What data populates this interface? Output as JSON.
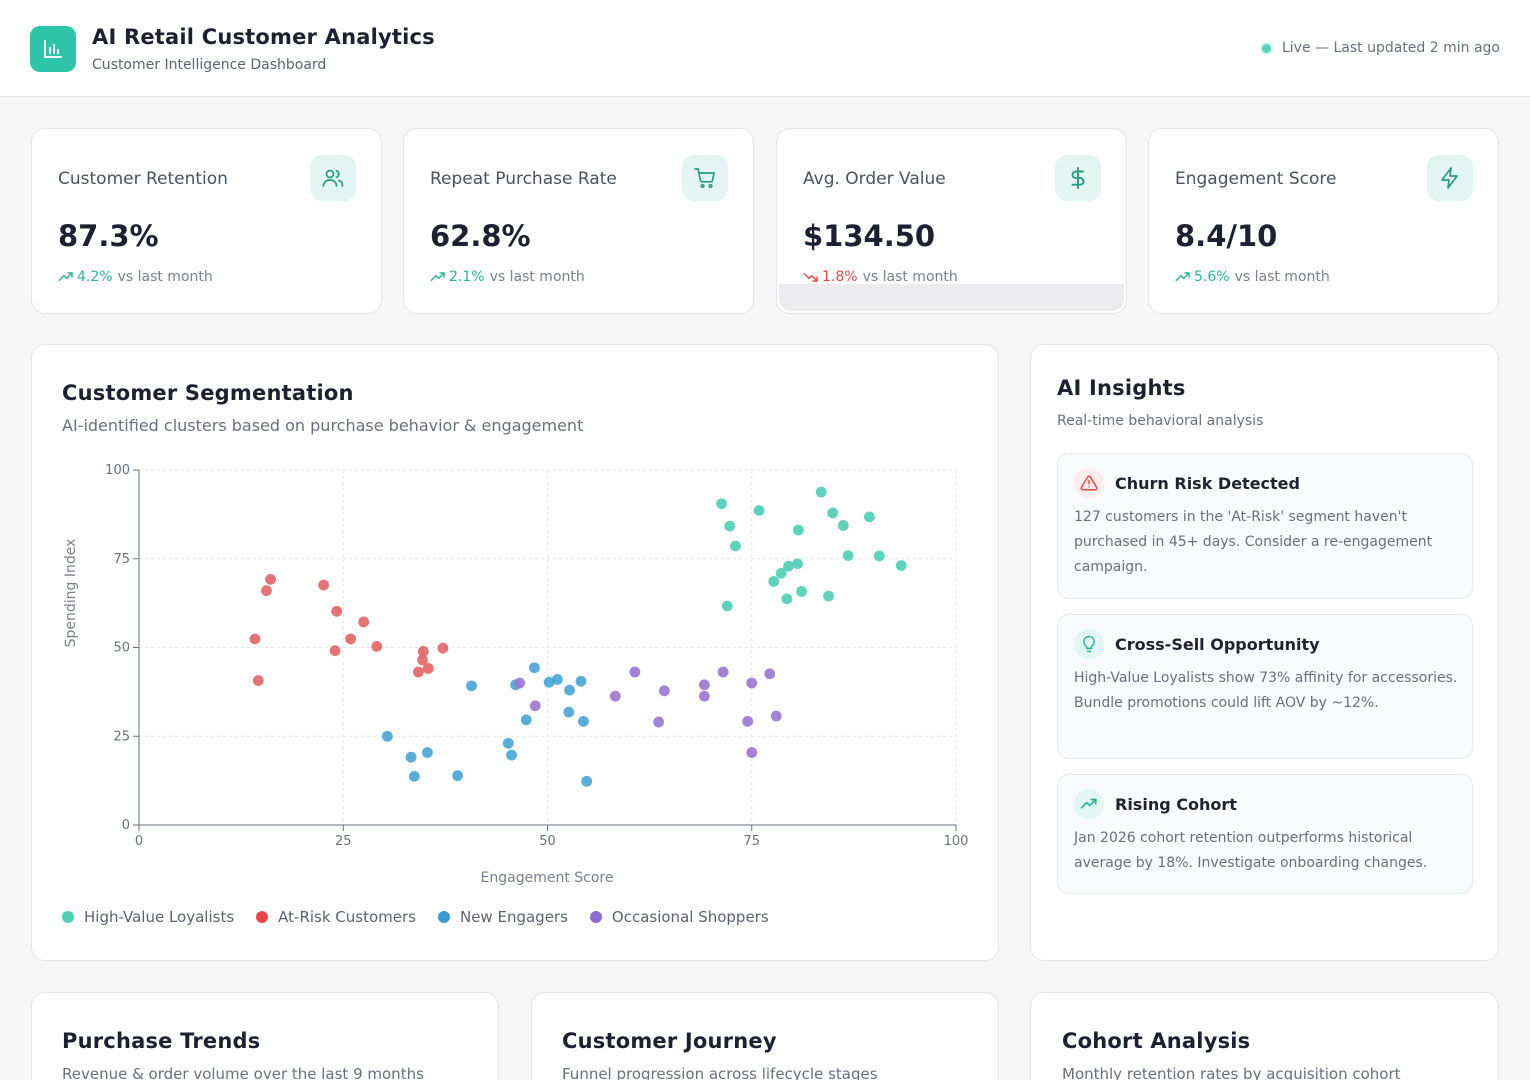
{
  "header": {
    "title": "AI Retail Customer Analytics",
    "subtitle": "Customer Intelligence Dashboard",
    "status": "Live — Last updated 2 min ago"
  },
  "kpis": [
    {
      "label": "Customer Retention",
      "value": "87.3%",
      "delta": "4.2%",
      "trend": "up",
      "suffix": "vs last month",
      "icon": "users-icon"
    },
    {
      "label": "Repeat Purchase Rate",
      "value": "62.8%",
      "delta": "2.1%",
      "trend": "up",
      "suffix": "vs last month",
      "icon": "cart-icon"
    },
    {
      "label": "Avg. Order Value",
      "value": "$134.50",
      "delta": "1.8%",
      "trend": "down",
      "suffix": "vs last month",
      "icon": "dollar-icon"
    },
    {
      "label": "Engagement Score",
      "value": "8.4/10",
      "delta": "5.6%",
      "trend": "up",
      "suffix": "vs last month",
      "icon": "bolt-icon"
    }
  ],
  "segmentation": {
    "title": "Customer Segmentation",
    "subtitle": "AI-identified clusters based on purchase behavior & engagement"
  },
  "chart_data": {
    "type": "scatter",
    "xlabel": "Engagement Score",
    "ylabel": "Spending Index",
    "xlim": [
      0,
      100
    ],
    "ylim": [
      0,
      100
    ],
    "xticks": [
      0,
      25,
      50,
      75,
      100
    ],
    "yticks": [
      0,
      25,
      50,
      75,
      100
    ],
    "grid": true,
    "legend_position": "bottom-left",
    "series": [
      {
        "name": "High-Value Loyalists",
        "color": "#4fcfb6",
        "points": [
          [
            71.3,
            90.5
          ],
          [
            72.3,
            84.2
          ],
          [
            72.0,
            61.7
          ],
          [
            73.0,
            78.6
          ],
          [
            75.9,
            88.6
          ],
          [
            77.7,
            68.6
          ],
          [
            78.6,
            70.9
          ],
          [
            79.5,
            72.9
          ],
          [
            79.3,
            63.7
          ],
          [
            80.7,
            83.1
          ],
          [
            80.6,
            73.6
          ],
          [
            81.1,
            65.8
          ],
          [
            83.5,
            93.8
          ],
          [
            84.4,
            64.5
          ],
          [
            84.9,
            87.9
          ],
          [
            86.2,
            84.4
          ],
          [
            86.8,
            75.9
          ],
          [
            89.4,
            86.8
          ],
          [
            90.6,
            75.8
          ],
          [
            93.3,
            73.1
          ]
        ]
      },
      {
        "name": "At-Risk Customers",
        "color": "#e46767",
        "points": [
          [
            14.2,
            52.4
          ],
          [
            14.6,
            40.7
          ],
          [
            15.6,
            66.0
          ],
          [
            16.1,
            69.2
          ],
          [
            22.6,
            67.6
          ],
          [
            24.2,
            60.2
          ],
          [
            24.0,
            49.1
          ],
          [
            25.9,
            52.4
          ],
          [
            27.5,
            57.2
          ],
          [
            29.1,
            50.3
          ],
          [
            34.2,
            43.1
          ],
          [
            34.7,
            46.5
          ],
          [
            34.8,
            48.9
          ],
          [
            35.4,
            44.1
          ],
          [
            37.2,
            49.8
          ]
        ]
      },
      {
        "name": "New Engagers",
        "color": "#4ba7d6",
        "points": [
          [
            30.4,
            25.0
          ],
          [
            33.3,
            19.1
          ],
          [
            33.7,
            13.7
          ],
          [
            35.3,
            20.4
          ],
          [
            39.0,
            13.9
          ],
          [
            40.7,
            39.2
          ],
          [
            45.2,
            23.0
          ],
          [
            45.6,
            19.7
          ],
          [
            46.1,
            39.5
          ],
          [
            47.4,
            29.6
          ],
          [
            48.4,
            44.3
          ],
          [
            50.2,
            40.2
          ],
          [
            51.2,
            41.0
          ],
          [
            52.6,
            31.8
          ],
          [
            52.7,
            38.0
          ],
          [
            54.1,
            40.5
          ],
          [
            54.4,
            29.2
          ],
          [
            54.8,
            12.3
          ]
        ]
      },
      {
        "name": "Occasional Shoppers",
        "color": "#9a78d2",
        "points": [
          [
            46.6,
            40.0
          ],
          [
            48.5,
            33.6
          ],
          [
            58.3,
            36.3
          ],
          [
            60.7,
            43.1
          ],
          [
            63.6,
            29.0
          ],
          [
            64.3,
            37.8
          ],
          [
            69.2,
            39.5
          ],
          [
            69.2,
            36.3
          ],
          [
            71.5,
            43.1
          ],
          [
            74.5,
            29.2
          ],
          [
            75.0,
            40.0
          ],
          [
            75.0,
            20.4
          ],
          [
            77.2,
            42.6
          ],
          [
            78.0,
            30.7
          ]
        ]
      }
    ]
  },
  "insights": {
    "title": "AI Insights",
    "subtitle": "Real-time behavioral analysis",
    "items": [
      {
        "title": "Churn Risk Detected",
        "body": "127 customers in the 'At-Risk' segment haven't purchased in 45+ days. Consider a re-engagement campaign.",
        "icon": "alert-triangle-icon",
        "color": "#e24a4a"
      },
      {
        "title": "Cross-Sell Opportunity",
        "body": "High-Value Loyalists show 73% affinity for accessories. Bundle promotions could lift AOV by ~12%.",
        "icon": "lightbulb-icon",
        "color": "#2bb596"
      },
      {
        "title": "Rising Cohort",
        "body": "Jan 2026 cohort retention outperforms historical average by 18%. Investigate onboarding changes.",
        "icon": "trending-up-icon",
        "color": "#2bb596"
      }
    ]
  },
  "bottom_cards": [
    {
      "title": "Purchase Trends",
      "subtitle": "Revenue & order volume over the last 9 months"
    },
    {
      "title": "Customer Journey",
      "subtitle": "Funnel progression across lifecycle stages"
    },
    {
      "title": "Cohort Analysis",
      "subtitle": "Monthly retention rates by acquisition cohort"
    }
  ]
}
